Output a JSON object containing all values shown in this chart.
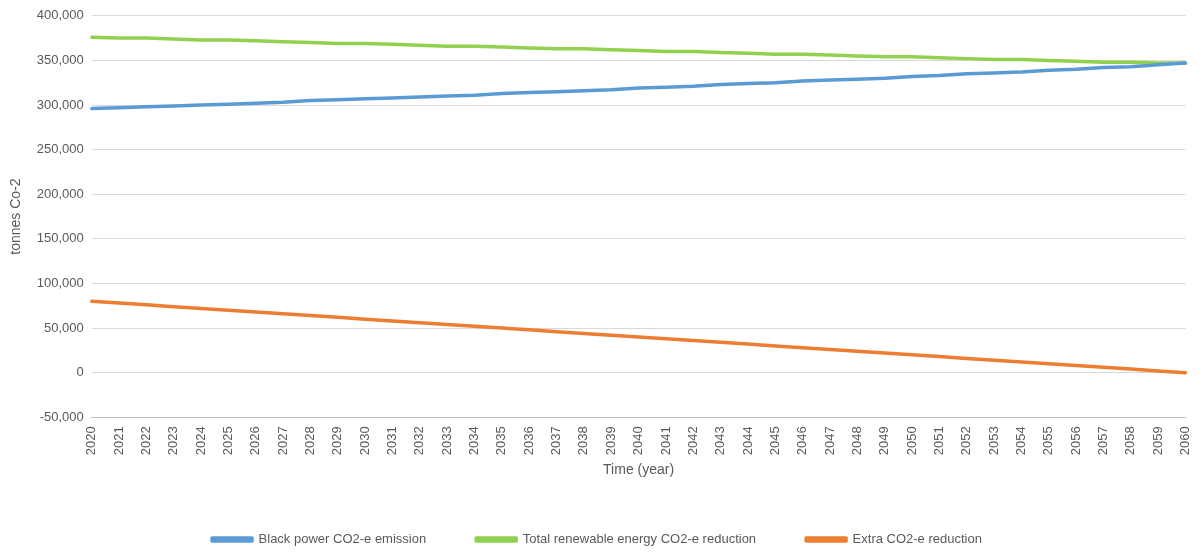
{
  "chart_data": {
    "type": "line",
    "xlabel": "Time (year)",
    "ylabel": "tonnes Co-2",
    "categories": [
      "2020",
      "2021",
      "2022",
      "2023",
      "2024",
      "2025",
      "2026",
      "2027",
      "2028",
      "2029",
      "2030",
      "2031",
      "2032",
      "2033",
      "2034",
      "2035",
      "2036",
      "2037",
      "2038",
      "2039",
      "2040",
      "2041",
      "2042",
      "2043",
      "2044",
      "2045",
      "2046",
      "2047",
      "2048",
      "2049",
      "2050",
      "2051",
      "2052",
      "2053",
      "2054",
      "2055",
      "2056",
      "2057",
      "2058",
      "2059",
      "2060"
    ],
    "series": [
      {
        "name": "Black power CO2-e emission",
        "color": "#5b9bd5",
        "values": [
          296000,
          297000,
          298000,
          299000,
          300000,
          301000,
          302000,
          303000,
          305000,
          306000,
          307000,
          308000,
          309000,
          310000,
          311000,
          313000,
          314000,
          315000,
          316000,
          317000,
          319000,
          320000,
          321000,
          323000,
          324000,
          325000,
          327000,
          328000,
          329000,
          330000,
          332000,
          333000,
          335000,
          336000,
          337000,
          339000,
          340000,
          342000,
          343000,
          345000,
          347000
        ]
      },
      {
        "name": "Total renewable energy CO2-e reduction",
        "color": "#92d050",
        "values": [
          376000,
          375000,
          375000,
          374000,
          373000,
          373000,
          372000,
          371000,
          370000,
          369000,
          369000,
          368000,
          367000,
          366000,
          366000,
          365000,
          364000,
          363000,
          363000,
          362000,
          361000,
          360000,
          360000,
          359000,
          358000,
          357000,
          357000,
          356000,
          355000,
          354000,
          354000,
          353000,
          352000,
          351000,
          351000,
          350000,
          349000,
          348000,
          348000,
          347000,
          347000
        ]
      },
      {
        "name": "Extra CO2-e reduction",
        "color": "#ed7d31",
        "values": [
          80000,
          78000,
          76000,
          74000,
          72000,
          70000,
          68000,
          66000,
          64000,
          62000,
          60000,
          58000,
          56000,
          54000,
          52000,
          50000,
          48000,
          46000,
          44000,
          42000,
          40000,
          38000,
          36000,
          34000,
          32000,
          30000,
          28000,
          26000,
          24000,
          22000,
          20000,
          18000,
          16000,
          14000,
          12000,
          10000,
          8000,
          6000,
          4000,
          2000,
          0
        ]
      }
    ],
    "ylim": [
      -50000,
      400000
    ],
    "yticks": [
      {
        "value": -50000,
        "label": "-50,000"
      },
      {
        "value": 0,
        "label": "0"
      },
      {
        "value": 50000,
        "label": "50,000"
      },
      {
        "value": 100000,
        "label": "100,000"
      },
      {
        "value": 150000,
        "label": "150,000"
      },
      {
        "value": 200000,
        "label": "200,000"
      },
      {
        "value": 250000,
        "label": "250,000"
      },
      {
        "value": 300000,
        "label": "300,000"
      },
      {
        "value": 350000,
        "label": "350,000"
      },
      {
        "value": 400000,
        "label": "400,000"
      }
    ],
    "grid": "y",
    "legend": "bottom",
    "marker": "none",
    "line_style": "solid"
  }
}
